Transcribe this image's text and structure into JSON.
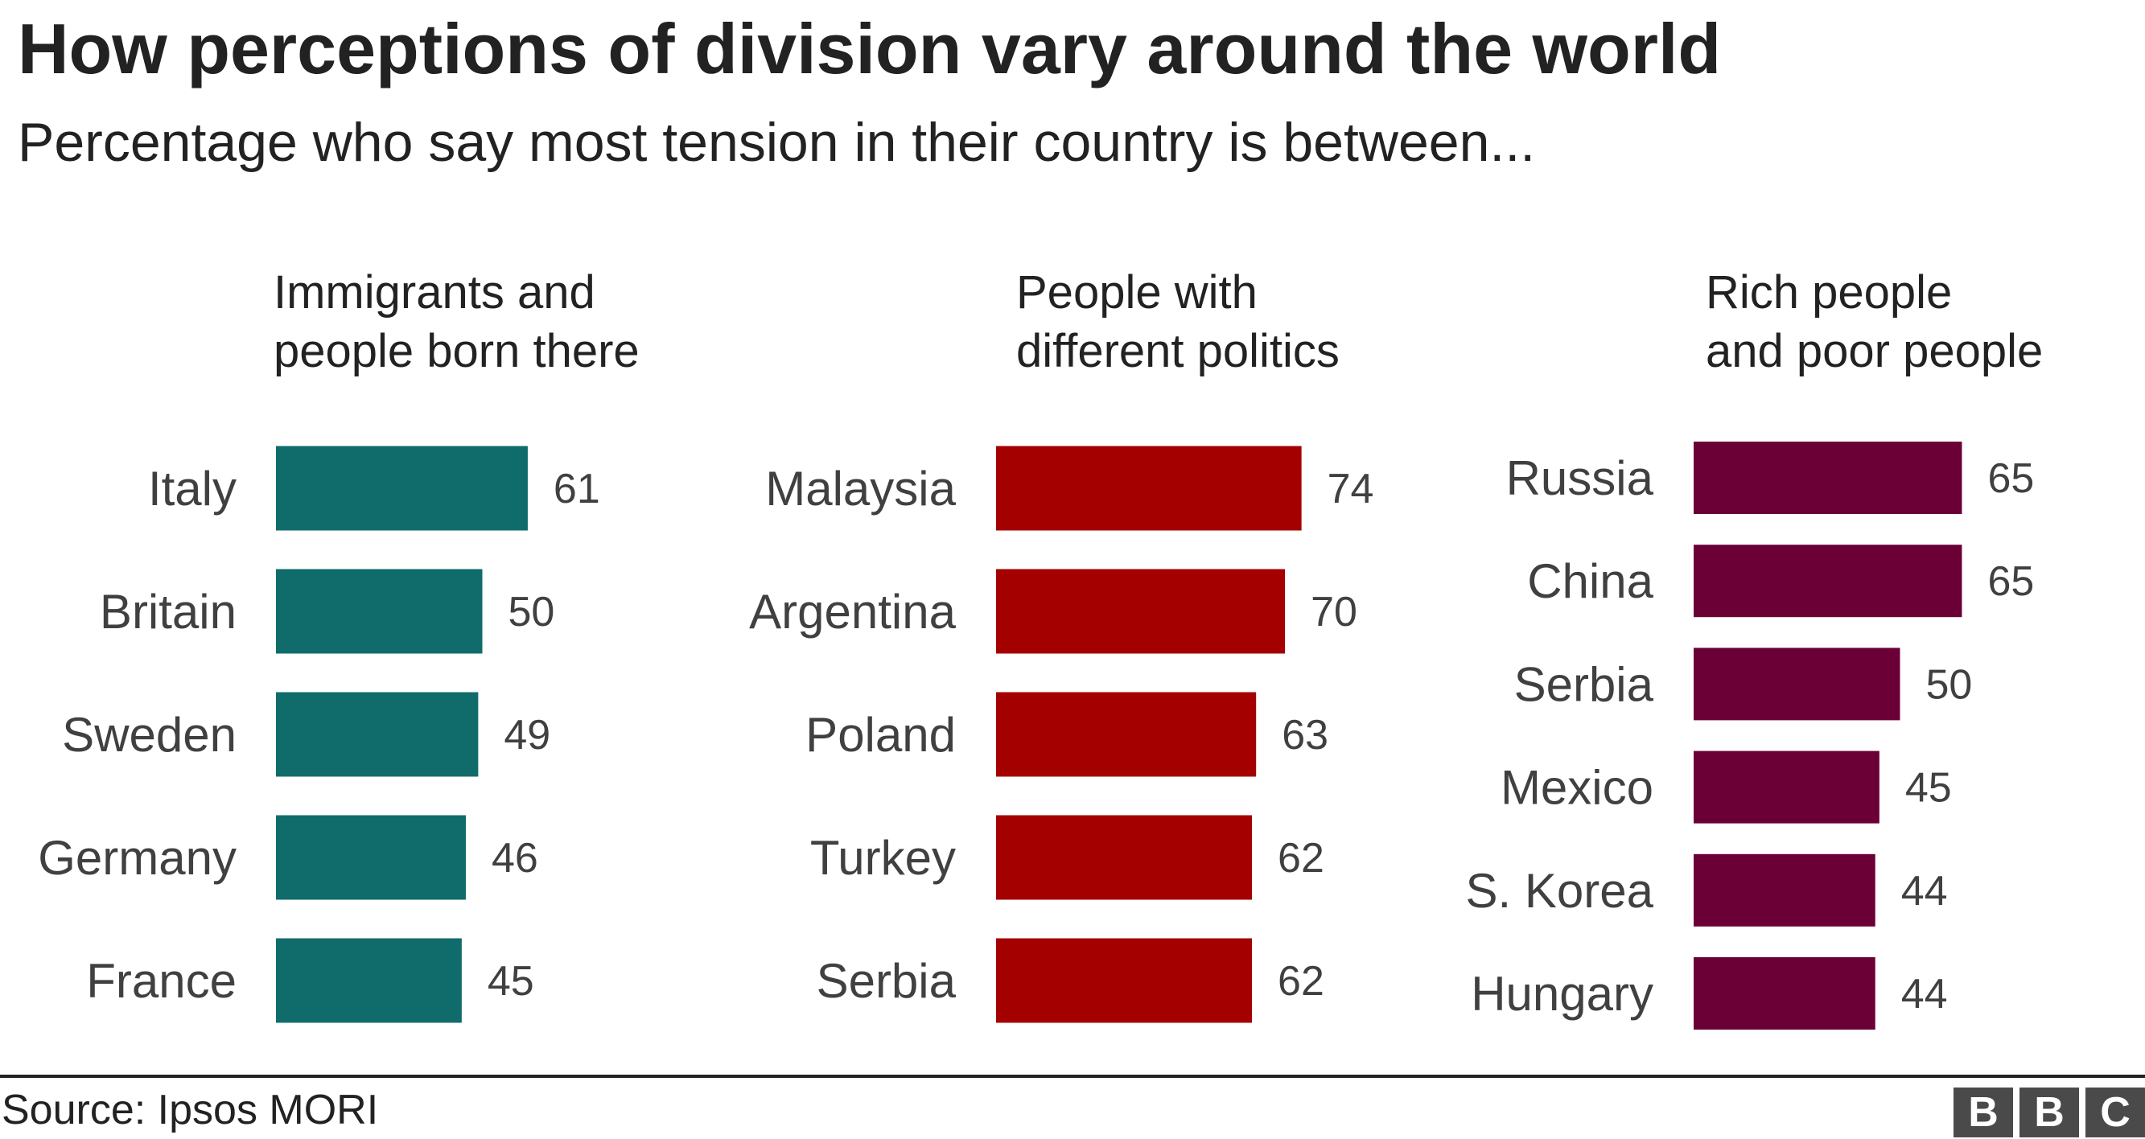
{
  "title": "How perceptions of division vary around the world",
  "subtitle": "Percentage who say most tension in their country is between...",
  "source": "Source: Ipsos MORI",
  "logo": "BBC",
  "chart_data": [
    {
      "type": "bar",
      "orientation": "horizontal",
      "title_lines": [
        "Immigrants and",
        "people born there"
      ],
      "categories": [
        "Italy",
        "Britain",
        "Sweden",
        "Germany",
        "France"
      ],
      "values": [
        61,
        50,
        49,
        46,
        45
      ],
      "color": "#106c6a",
      "data_labels": true
    },
    {
      "type": "bar",
      "orientation": "horizontal",
      "title_lines": [
        "People with",
        "different politics"
      ],
      "categories": [
        "Malaysia",
        "Argentina",
        "Poland",
        "Turkey",
        "Serbia"
      ],
      "values": [
        74,
        70,
        63,
        62,
        62
      ],
      "color": "#a50000",
      "data_labels": true
    },
    {
      "type": "bar",
      "orientation": "horizontal",
      "title_lines": [
        "Rich people",
        "and poor people"
      ],
      "categories": [
        "Russia",
        "China",
        "Serbia",
        "Mexico",
        "S. Korea",
        "Hungary"
      ],
      "values": [
        65,
        65,
        50,
        45,
        44,
        44
      ],
      "color": "#6b0037",
      "data_labels": true
    }
  ]
}
